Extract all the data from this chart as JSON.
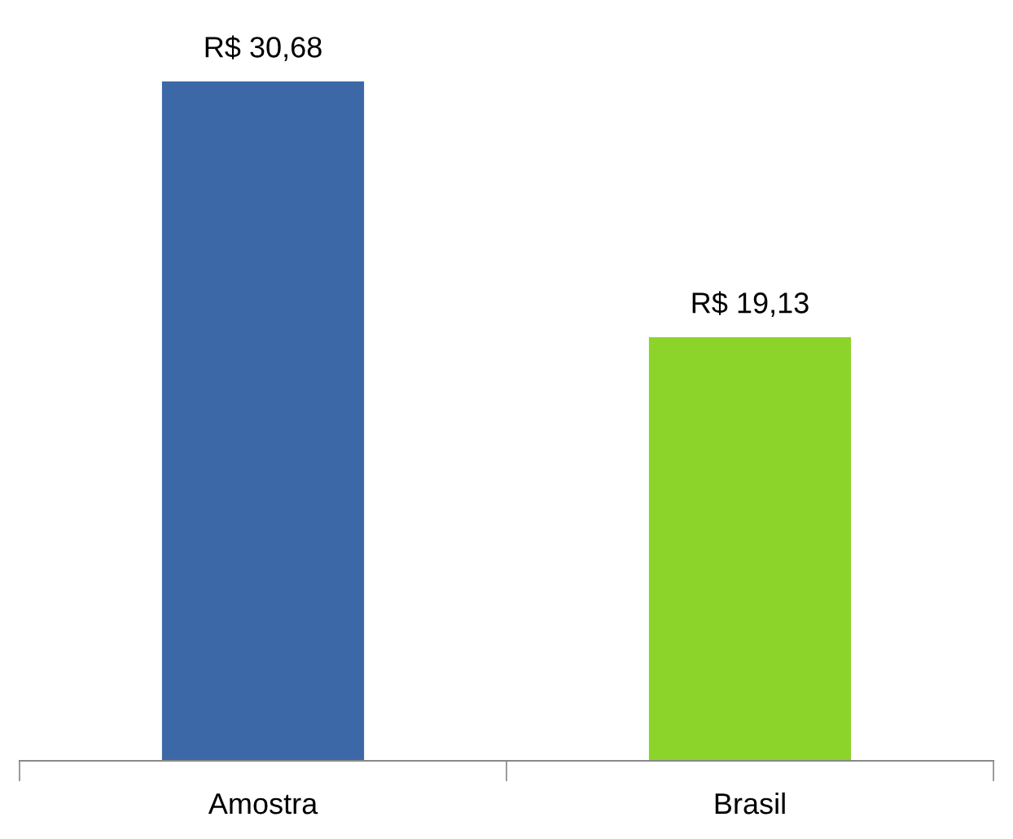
{
  "chart_data": {
    "type": "bar",
    "categories": [
      "Amostra",
      "Brasil"
    ],
    "values": [
      30.68,
      19.13
    ],
    "value_labels": [
      "R$ 30,68",
      "R$ 19,13"
    ],
    "colors": [
      "#3c68a8",
      "#8cd42a"
    ],
    "legend": false,
    "grid": false
  }
}
